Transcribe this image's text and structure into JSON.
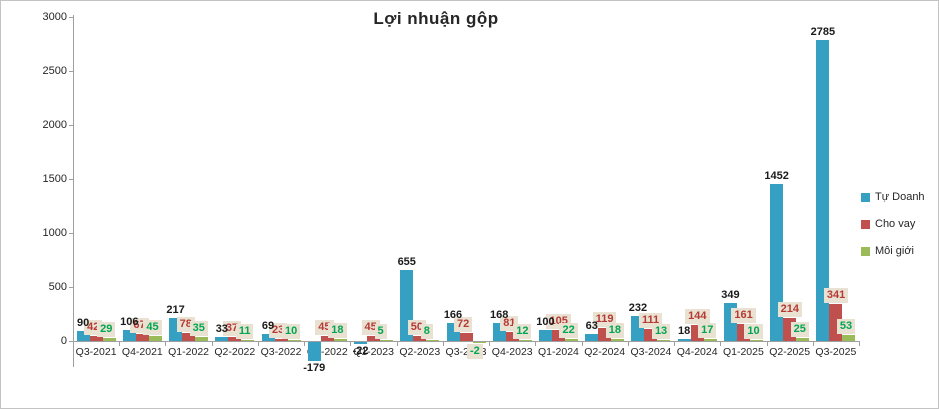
{
  "chart_data": {
    "type": "bar",
    "title": "Lợi nhuận gộp",
    "categories": [
      "Q3-2021",
      "Q4-2021",
      "Q1-2022",
      "Q2-2022",
      "Q3-2022",
      "Q4-2022",
      "Q1-2023",
      "Q2-2023",
      "Q3-2023",
      "Q4-2023",
      "Q1-2024",
      "Q2-2024",
      "Q3-2024",
      "Q4-2024",
      "Q1-2025",
      "Q2-2025",
      "Q3-2025"
    ],
    "series": [
      {
        "name": "Tự Doanh",
        "color": "#35a0c2",
        "label_color": "#1a1a1a",
        "label_bg": "none",
        "values": [
          90,
          106,
          217,
          33,
          69,
          -179,
          -22,
          655,
          166,
          168,
          100,
          63,
          232,
          18,
          349,
          1452,
          2785
        ]
      },
      {
        "name": "Cho vay",
        "color": "#c0504d",
        "label_color": "#b63934",
        "label_bg": "#e9e1d2",
        "values": [
          42,
          67,
          78,
          37,
          23,
          45,
          45,
          50,
          72,
          81,
          105,
          119,
          111,
          144,
          161,
          214,
          341
        ]
      },
      {
        "name": "Môi giới",
        "color": "#9bbb59",
        "label_color": "#00a651",
        "label_bg": "#e9e1d2",
        "values": [
          29,
          45,
          35,
          11,
          10,
          18,
          5,
          8,
          -2,
          12,
          22,
          18,
          13,
          17,
          10,
          25,
          53
        ]
      }
    ],
    "y_ticks": [
      0,
      500,
      1000,
      1500,
      2000,
      2500,
      3000
    ],
    "ylim": [
      -222,
      3000
    ],
    "grid": false,
    "legend_position": "right"
  }
}
